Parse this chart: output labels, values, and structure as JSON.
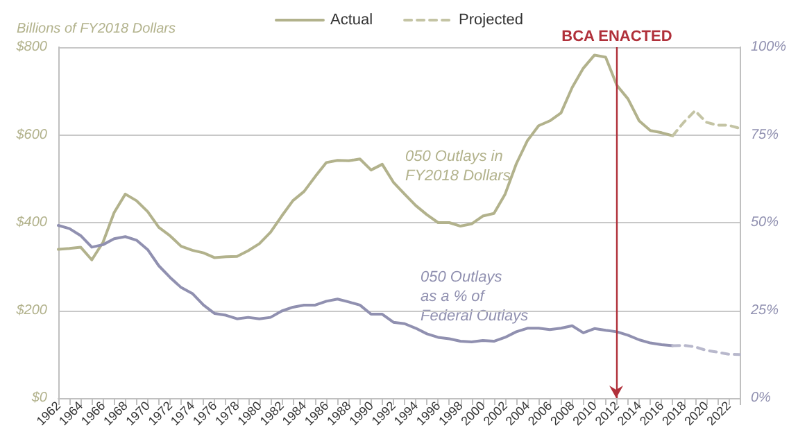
{
  "chart_data": {
    "type": "line",
    "ylabel": "Billions of FY2018 Dollars",
    "categories": [
      "1962",
      null,
      "1964",
      null,
      "1966",
      null,
      "1968",
      null,
      "1970",
      null,
      "1972",
      null,
      "1974",
      null,
      "1976",
      null,
      "1978",
      null,
      "1980",
      null,
      "1982",
      null,
      "1984",
      null,
      "1986",
      null,
      "1988",
      null,
      "1990",
      null,
      "1992",
      null,
      "1994",
      null,
      "1996",
      null,
      "1998",
      null,
      "2000",
      null,
      "2002",
      null,
      "2004",
      null,
      "2006",
      null,
      "2008",
      null,
      "2010",
      null,
      "2012",
      null,
      "2014",
      null,
      "2016",
      null,
      "2018",
      null,
      "2020",
      null,
      "2022",
      null
    ],
    "series": [
      {
        "name": "Actual",
        "color": "#b2b28c",
        "line_style": "solid",
        "values": [
          339,
          341,
          344,
          315,
          355,
          423,
          465,
          450,
          425,
          389,
          370,
          346,
          337,
          331,
          320,
          322,
          323,
          336,
          352,
          378,
          415,
          450,
          471,
          505,
          537,
          542,
          541,
          545,
          520,
          533,
          492,
          465,
          439,
          418,
          400,
          400,
          392,
          397,
          415,
          421,
          465,
          534,
          587,
          621,
          632,
          650,
          708,
          752,
          782,
          777,
          713,
          682,
          632,
          610,
          605,
          598,
          null,
          null,
          null,
          null,
          null,
          null
        ]
      },
      {
        "name": "Projected",
        "color": "#c4c4a4",
        "line_style": "dashed",
        "values": [
          null,
          null,
          null,
          null,
          null,
          null,
          null,
          null,
          null,
          null,
          null,
          null,
          null,
          null,
          null,
          null,
          null,
          null,
          null,
          null,
          null,
          null,
          null,
          null,
          null,
          null,
          null,
          null,
          null,
          null,
          null,
          null,
          null,
          null,
          null,
          null,
          null,
          null,
          null,
          null,
          null,
          null,
          null,
          null,
          null,
          null,
          null,
          null,
          null,
          null,
          null,
          null,
          null,
          null,
          null,
          598,
          629,
          655,
          629,
          622,
          622,
          615
        ]
      },
      {
        "color": "#9090b0",
        "axis": "y2",
        "line_style": "solid",
        "values": [
          49.2,
          48.3,
          46.3,
          43.0,
          43.7,
          45.4,
          46.0,
          45.0,
          42.3,
          37.7,
          34.4,
          31.5,
          29.8,
          26.5,
          24.1,
          23.6,
          22.6,
          23.0,
          22.6,
          23.0,
          24.8,
          25.9,
          26.5,
          26.5,
          27.6,
          28.2,
          27.4,
          26.5,
          23.9,
          23.9,
          21.6,
          21.2,
          19.9,
          18.3,
          17.3,
          16.9,
          16.2,
          16.0,
          16.4,
          16.2,
          17.3,
          18.9,
          19.9,
          19.9,
          19.5,
          19.9,
          20.6,
          18.6,
          19.8,
          19.3,
          18.9,
          17.9,
          16.6,
          15.7,
          15.2,
          14.9,
          null,
          null,
          null,
          null,
          null,
          null
        ]
      },
      {
        "color": "#b8b8cc",
        "axis": "y2",
        "line_style": "dashed",
        "values": [
          null,
          null,
          null,
          null,
          null,
          null,
          null,
          null,
          null,
          null,
          null,
          null,
          null,
          null,
          null,
          null,
          null,
          null,
          null,
          null,
          null,
          null,
          null,
          null,
          null,
          null,
          null,
          null,
          null,
          null,
          null,
          null,
          null,
          null,
          null,
          null,
          null,
          null,
          null,
          null,
          null,
          null,
          null,
          null,
          null,
          null,
          null,
          null,
          null,
          null,
          null,
          null,
          null,
          null,
          null,
          14.9,
          15.0,
          14.6,
          13.6,
          13.1,
          12.5,
          12.4
        ]
      }
    ],
    "ylim": [
      0,
      800
    ],
    "yticks": [
      {
        "value": 0,
        "label": "$0"
      },
      {
        "value": 200,
        "label": "$200"
      },
      {
        "value": 400,
        "label": "$400"
      },
      {
        "value": 600,
        "label": "$600"
      },
      {
        "value": 800,
        "label": "$800"
      }
    ],
    "y2lim": [
      0,
      100
    ],
    "y2ticks": [
      {
        "value": 0,
        "label": "0%"
      },
      {
        "value": 25,
        "label": "25%"
      },
      {
        "value": 50,
        "label": "50%"
      },
      {
        "value": 75,
        "label": "75%"
      },
      {
        "value": 100,
        "label": "100%"
      }
    ],
    "ref_lines": [
      {
        "axis": "x",
        "value": "2012",
        "label": "BCA ENACTED",
        "color": "#b0303a"
      }
    ],
    "annotations": [
      "050 Outlays in\nFY2018 Dollars",
      "050 Outlays\nas a % of\nFederal Outlays"
    ],
    "grid": "y",
    "legend": "top",
    "marker": "none"
  }
}
